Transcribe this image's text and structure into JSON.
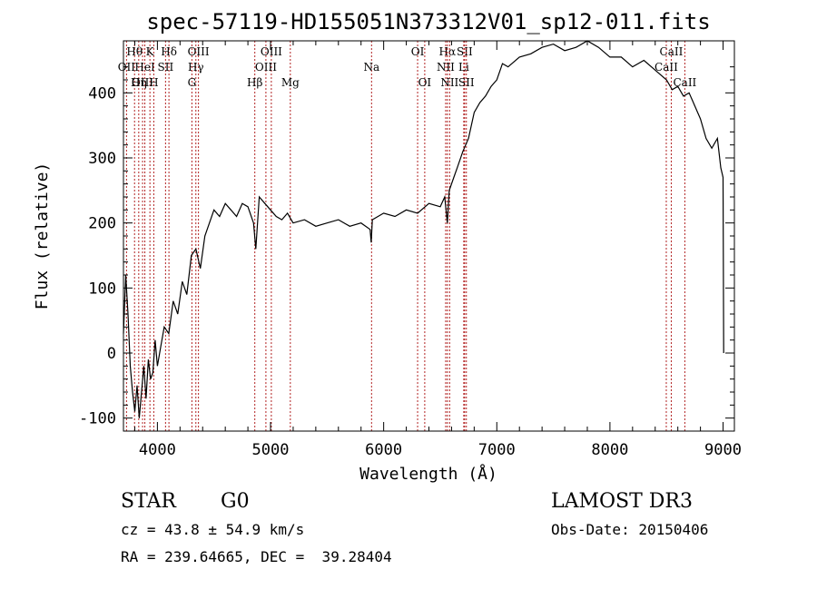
{
  "chart_data": {
    "type": "line",
    "title": "spec-57119-HD155051N373312V01_sp12-011.fits",
    "xlabel": "Wavelength (Å)",
    "ylabel": "Flux (relative)",
    "xlim": [
      3700,
      9100
    ],
    "ylim": [
      -120,
      480
    ],
    "xticks": [
      4000,
      5000,
      6000,
      7000,
      8000,
      9000
    ],
    "yticks": [
      -100,
      0,
      100,
      200,
      300,
      400
    ],
    "series": [
      {
        "name": "spectrum",
        "x": [
          3700,
          3720,
          3740,
          3760,
          3780,
          3800,
          3820,
          3840,
          3860,
          3880,
          3900,
          3920,
          3940,
          3960,
          3980,
          4000,
          4030,
          4060,
          4100,
          4140,
          4180,
          4220,
          4260,
          4300,
          4340,
          4380,
          4420,
          4460,
          4500,
          4550,
          4600,
          4650,
          4700,
          4750,
          4800,
          4850,
          4870,
          4900,
          4950,
          5000,
          5050,
          5100,
          5150,
          5200,
          5300,
          5400,
          5500,
          5600,
          5700,
          5800,
          5880,
          5890,
          5900,
          5950,
          6000,
          6100,
          6200,
          6300,
          6400,
          6500,
          6540,
          6563,
          6580,
          6620,
          6650,
          6700,
          6750,
          6800,
          6850,
          6900,
          6950,
          7000,
          7050,
          7100,
          7200,
          7300,
          7400,
          7500,
          7600,
          7700,
          7800,
          7900,
          8000,
          8100,
          8200,
          8300,
          8400,
          8500,
          8550,
          8600,
          8650,
          8700,
          8750,
          8800,
          8850,
          8900,
          8950,
          8980,
          9000,
          9005
        ],
        "y": [
          30,
          120,
          60,
          -20,
          -60,
          -90,
          -50,
          -100,
          -60,
          -20,
          -70,
          -10,
          -40,
          -30,
          20,
          -20,
          10,
          40,
          30,
          80,
          60,
          110,
          90,
          150,
          160,
          130,
          180,
          200,
          220,
          210,
          230,
          220,
          210,
          230,
          225,
          200,
          160,
          240,
          230,
          220,
          210,
          205,
          215,
          200,
          205,
          195,
          200,
          205,
          195,
          200,
          190,
          170,
          205,
          210,
          215,
          210,
          220,
          215,
          230,
          225,
          240,
          200,
          250,
          270,
          285,
          310,
          330,
          370,
          385,
          395,
          410,
          420,
          445,
          440,
          455,
          460,
          470,
          475,
          465,
          470,
          480,
          470,
          455,
          455,
          440,
          450,
          435,
          420,
          405,
          410,
          395,
          400,
          380,
          360,
          330,
          315,
          330,
          285,
          270,
          0
        ]
      }
    ],
    "line_markers": [
      {
        "label": "Hθ",
        "wave": 3798,
        "row": 1
      },
      {
        "label": "OII",
        "wave": 3727,
        "row": 2
      },
      {
        "label": "OIII",
        "wave": 3869,
        "row": 3
      },
      {
        "label": "K",
        "wave": 3934,
        "row": 1
      },
      {
        "label": "HeI",
        "wave": 3889,
        "row": 2
      },
      {
        "label": "Hη",
        "wave": 3835,
        "row": 3
      },
      {
        "label": "Hδ",
        "wave": 4102,
        "row": 1
      },
      {
        "label": "SII",
        "wave": 4072,
        "row": 2
      },
      {
        "label": "H",
        "wave": 3968,
        "row": 3
      },
      {
        "label": "OIII",
        "wave": 4363,
        "row": 1
      },
      {
        "label": "Hγ",
        "wave": 4340,
        "row": 2
      },
      {
        "label": "G",
        "wave": 4305,
        "row": 3
      },
      {
        "label": "Hβ",
        "wave": 4861,
        "row": 3
      },
      {
        "label": "OIII",
        "wave": 5007,
        "row": 1
      },
      {
        "label": "OIII",
        "wave": 4959,
        "row": 2
      },
      {
        "label": "Mg",
        "wave": 5175,
        "row": 3
      },
      {
        "label": "Na",
        "wave": 5893,
        "row": 2
      },
      {
        "label": "OI",
        "wave": 6300,
        "row": 1
      },
      {
        "label": "OI",
        "wave": 6363,
        "row": 3
      },
      {
        "label": "Hα",
        "wave": 6563,
        "row": 1
      },
      {
        "label": "NII",
        "wave": 6548,
        "row": 2
      },
      {
        "label": "NII",
        "wave": 6583,
        "row": 3
      },
      {
        "label": "SII",
        "wave": 6716,
        "row": 1
      },
      {
        "label": "Li",
        "wave": 6708,
        "row": 2
      },
      {
        "label": "SII",
        "wave": 6731,
        "row": 3
      },
      {
        "label": "CaII",
        "wave": 8542,
        "row": 1
      },
      {
        "label": "CaII",
        "wave": 8498,
        "row": 2
      },
      {
        "label": "CaII",
        "wave": 8662,
        "row": 3
      }
    ]
  },
  "info": {
    "class_label": "STAR",
    "subclass": "G0",
    "cz": "cz = 43.8 ± 54.9 km/s",
    "coords": "RA = 239.64665, DEC =  39.28404",
    "survey": "LAMOST DR3",
    "obs_date": "Obs-Date: 20150406"
  },
  "colors": {
    "line": "#000000",
    "marker": "#b22222"
  }
}
